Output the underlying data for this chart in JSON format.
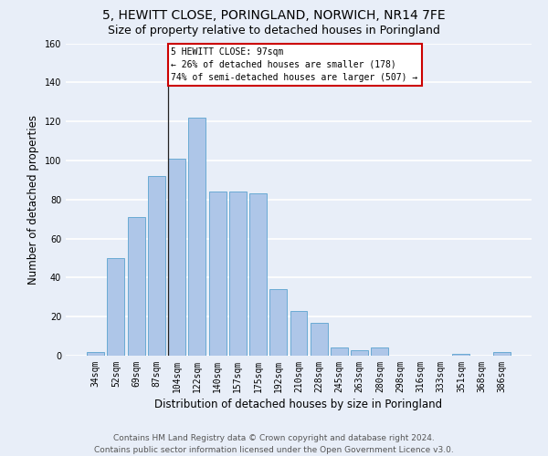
{
  "title1": "5, HEWITT CLOSE, PORINGLAND, NORWICH, NR14 7FE",
  "title2": "Size of property relative to detached houses in Poringland",
  "xlabel": "Distribution of detached houses by size in Poringland",
  "ylabel": "Number of detached properties",
  "categories": [
    "34sqm",
    "52sqm",
    "69sqm",
    "87sqm",
    "104sqm",
    "122sqm",
    "140sqm",
    "157sqm",
    "175sqm",
    "192sqm",
    "210sqm",
    "228sqm",
    "245sqm",
    "263sqm",
    "280sqm",
    "298sqm",
    "316sqm",
    "333sqm",
    "351sqm",
    "368sqm",
    "386sqm"
  ],
  "values": [
    2,
    50,
    71,
    92,
    101,
    122,
    84,
    84,
    83,
    34,
    23,
    17,
    4,
    3,
    4,
    0,
    0,
    0,
    1,
    0,
    2
  ],
  "bar_color": "#aec6e8",
  "bar_edgecolor": "#6aaad4",
  "subject_bar_index": 4,
  "annotation_text_line1": "5 HEWITT CLOSE: 97sqm",
  "annotation_text_line2": "← 26% of detached houses are smaller (178)",
  "annotation_text_line3": "74% of semi-detached houses are larger (507) →",
  "annotation_box_facecolor": "#ffffff",
  "annotation_box_edgecolor": "#cc0000",
  "ylim": [
    0,
    160
  ],
  "yticks": [
    0,
    20,
    40,
    60,
    80,
    100,
    120,
    140,
    160
  ],
  "bg_color": "#e8eef8",
  "grid_color": "#ffffff",
  "title1_fontsize": 10,
  "title2_fontsize": 9,
  "xlabel_fontsize": 8.5,
  "ylabel_fontsize": 8.5,
  "tick_fontsize": 7,
  "footer_fontsize": 6.5,
  "footer_line1": "Contains HM Land Registry data © Crown copyright and database right 2024.",
  "footer_line2": "Contains public sector information licensed under the Open Government Licence v3.0."
}
